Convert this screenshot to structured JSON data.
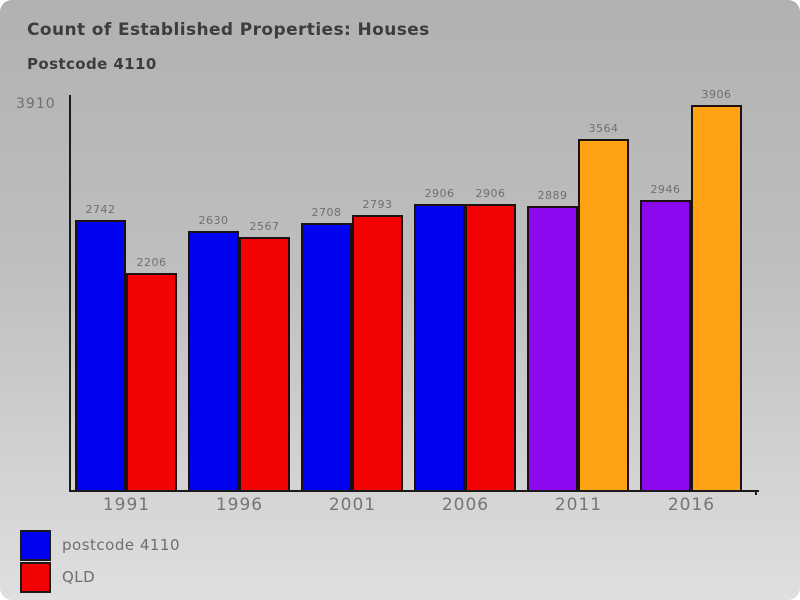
{
  "window": {
    "background_top_color": "#b1b1b1",
    "background_bottom_color": "#dfdfdf"
  },
  "chart_data": {
    "type": "bar",
    "title": "Count of Established Properties: Houses",
    "subtitle": "Postcode 4110",
    "categories": [
      "1991",
      "1996",
      "2001",
      "2006",
      "2011",
      "2016"
    ],
    "series": [
      {
        "name": "postcode 4110",
        "values": [
          2742,
          2630,
          2708,
          2906,
          2889,
          2946
        ],
        "bar_colors": [
          "#0202f2",
          "#0202f2",
          "#0202f2",
          "#0202f2",
          "#8c08ee",
          "#8c08ee"
        ]
      },
      {
        "name": "QLD",
        "values": [
          2206,
          2567,
          2793,
          2906,
          3564,
          3906
        ],
        "bar_colors": [
          "#f20202",
          "#f20202",
          "#f20202",
          "#f20202",
          "#ffa214",
          "#ffa214"
        ]
      }
    ],
    "ylim": [
      0,
      3910
    ],
    "y_axis_max_label": "3910",
    "bar_value_labels_shown": true,
    "grid": false,
    "legend_position": "bottom-left",
    "legend": [
      {
        "label": "postcode 4110",
        "color": "#0202f2"
      },
      {
        "label": "QLD",
        "color": "#f20202"
      }
    ],
    "accent_colors": {
      "bar_blue": "#0202f2",
      "bar_red": "#f20202",
      "bar_purple": "#8c08ee",
      "bar_orange": "#ffa214",
      "axis": "#1a1a1a",
      "title_text": "#3d3d3d",
      "label_text": "#6f6f6f"
    }
  }
}
